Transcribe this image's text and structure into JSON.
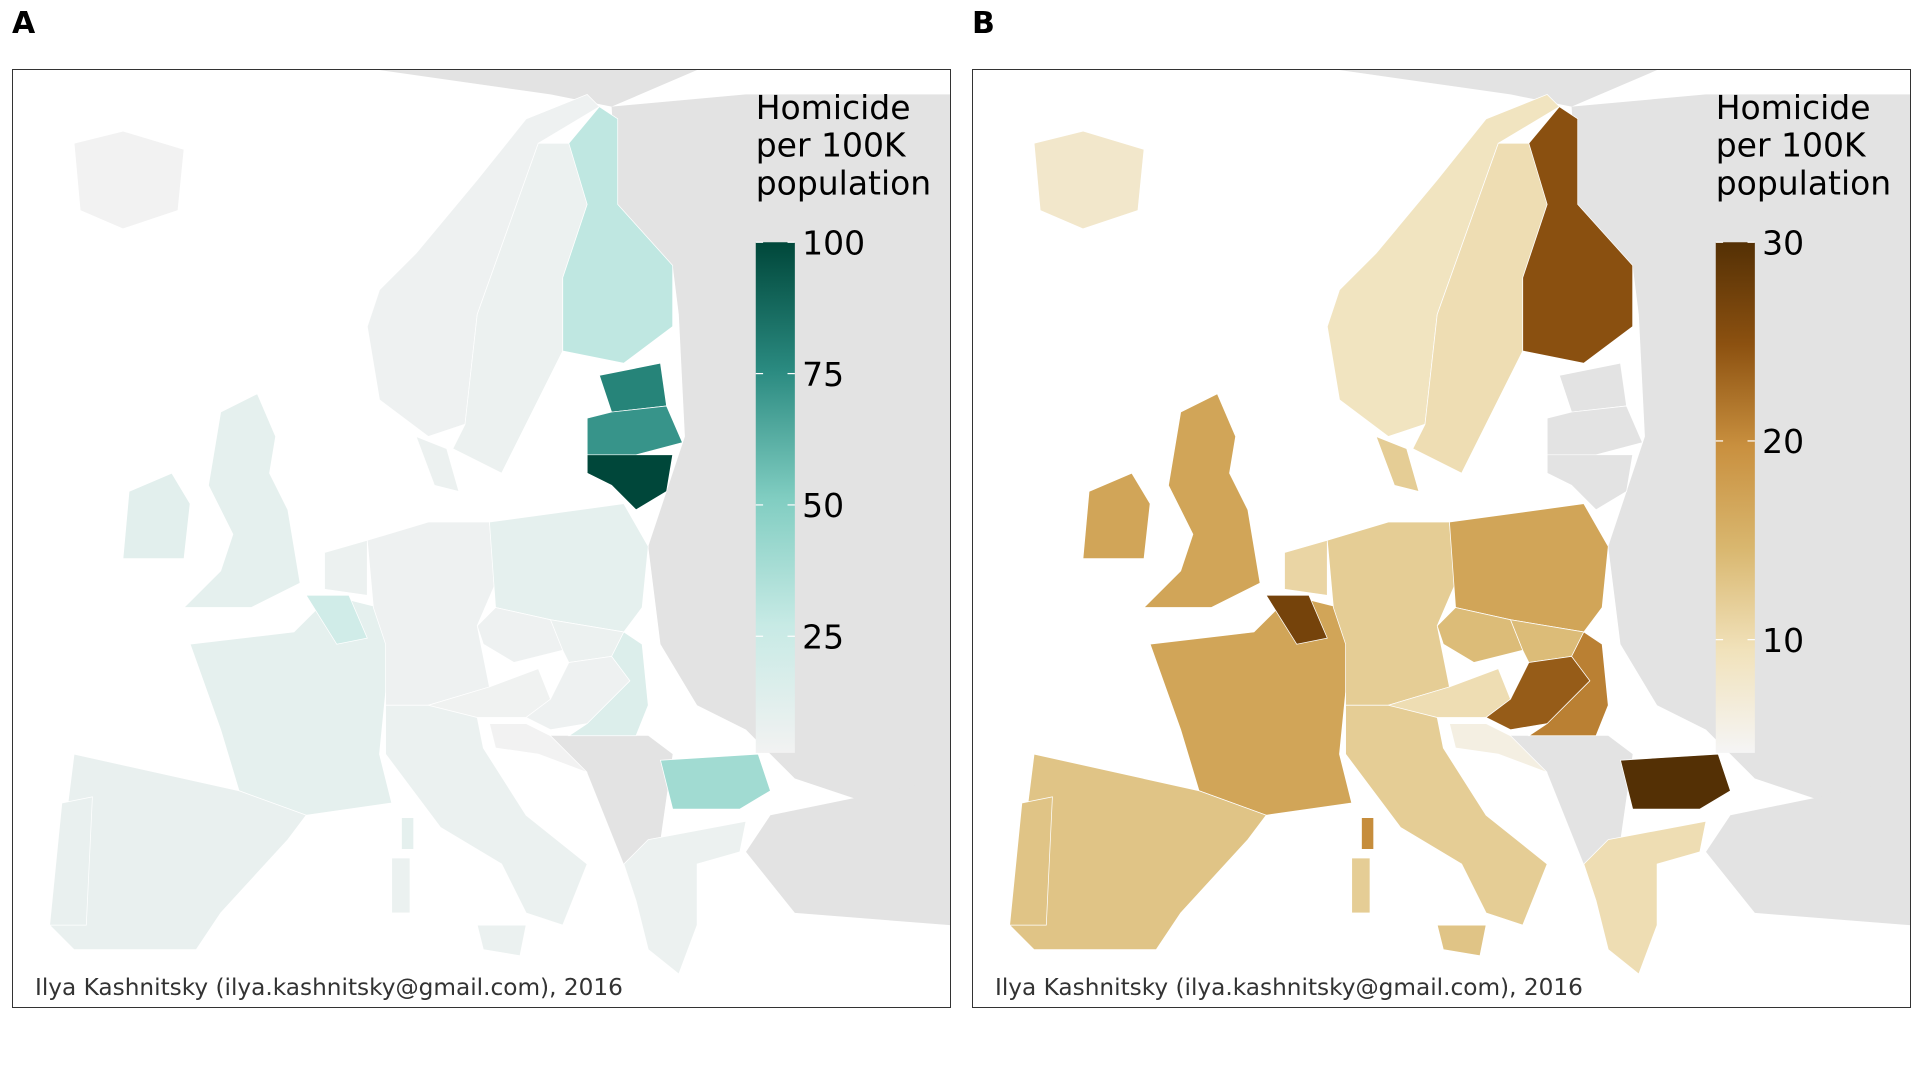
{
  "panels": [
    {
      "label": "A",
      "legend_title": [
        "Homicide",
        "per 100K",
        "population"
      ],
      "ticks": [
        25,
        50,
        75,
        100
      ],
      "range": [
        2.8,
        100
      ],
      "colors": [
        "#f2f2f2",
        "#c7eae5",
        "#80cdc1",
        "#2a8a80",
        "#00473a"
      ],
      "credit": "Ilya Kashnitsky (ilya.kashnitsky@gmail.com), 2016",
      "values": {
        "iceland": 3,
        "norway": 5,
        "sweden": 6,
        "finland": 30,
        "estonia": 78,
        "latvia": 72,
        "lithuania": 100,
        "denmark": 6,
        "uk": 10,
        "ireland": 12,
        "france": 10,
        "spain": 8,
        "portugal": 8,
        "belgium": 22,
        "netherlands": 6,
        "germany": 5,
        "poland": 10,
        "czechia": 5,
        "slovakia": 6,
        "austria": 4,
        "hungary": 5,
        "romania": 15,
        "italy": 7,
        "sicily": 7,
        "sardinia": 7,
        "corsica": 10,
        "slovenia": 3,
        "bulgaria": 40,
        "greece": 6
      }
    },
    {
      "label": "B",
      "legend_title": [
        "Homicide",
        "per 100K",
        "population"
      ],
      "ticks": [
        10,
        20,
        30
      ],
      "range": [
        4.3,
        30
      ],
      "colors": [
        "#f5f5f5",
        "#f1e2bb",
        "#d9b76f",
        "#c9903f",
        "#8c5110",
        "#543005"
      ],
      "credit": "Ilya Kashnitsky (ilya.kashnitsky@gmail.com), 2016",
      "values": {
        "iceland": 8,
        "norway": 9,
        "sweden": 10,
        "finland": 25,
        "estonia": null,
        "latvia": null,
        "lithuania": null,
        "denmark": 12,
        "uk": 17,
        "ireland": 17,
        "france": 17,
        "spain": 13,
        "portugal": 13,
        "belgium": 27,
        "netherlands": 11,
        "germany": 12,
        "poland": 17,
        "czechia": 14,
        "slovakia": 14,
        "austria": 10,
        "hungary": 24,
        "romania": 21,
        "italy": 12,
        "sicily": 13,
        "sardinia": 12,
        "corsica": 20,
        "slovenia": 6,
        "bulgaria": 30,
        "greece": 10
      }
    }
  ]
}
